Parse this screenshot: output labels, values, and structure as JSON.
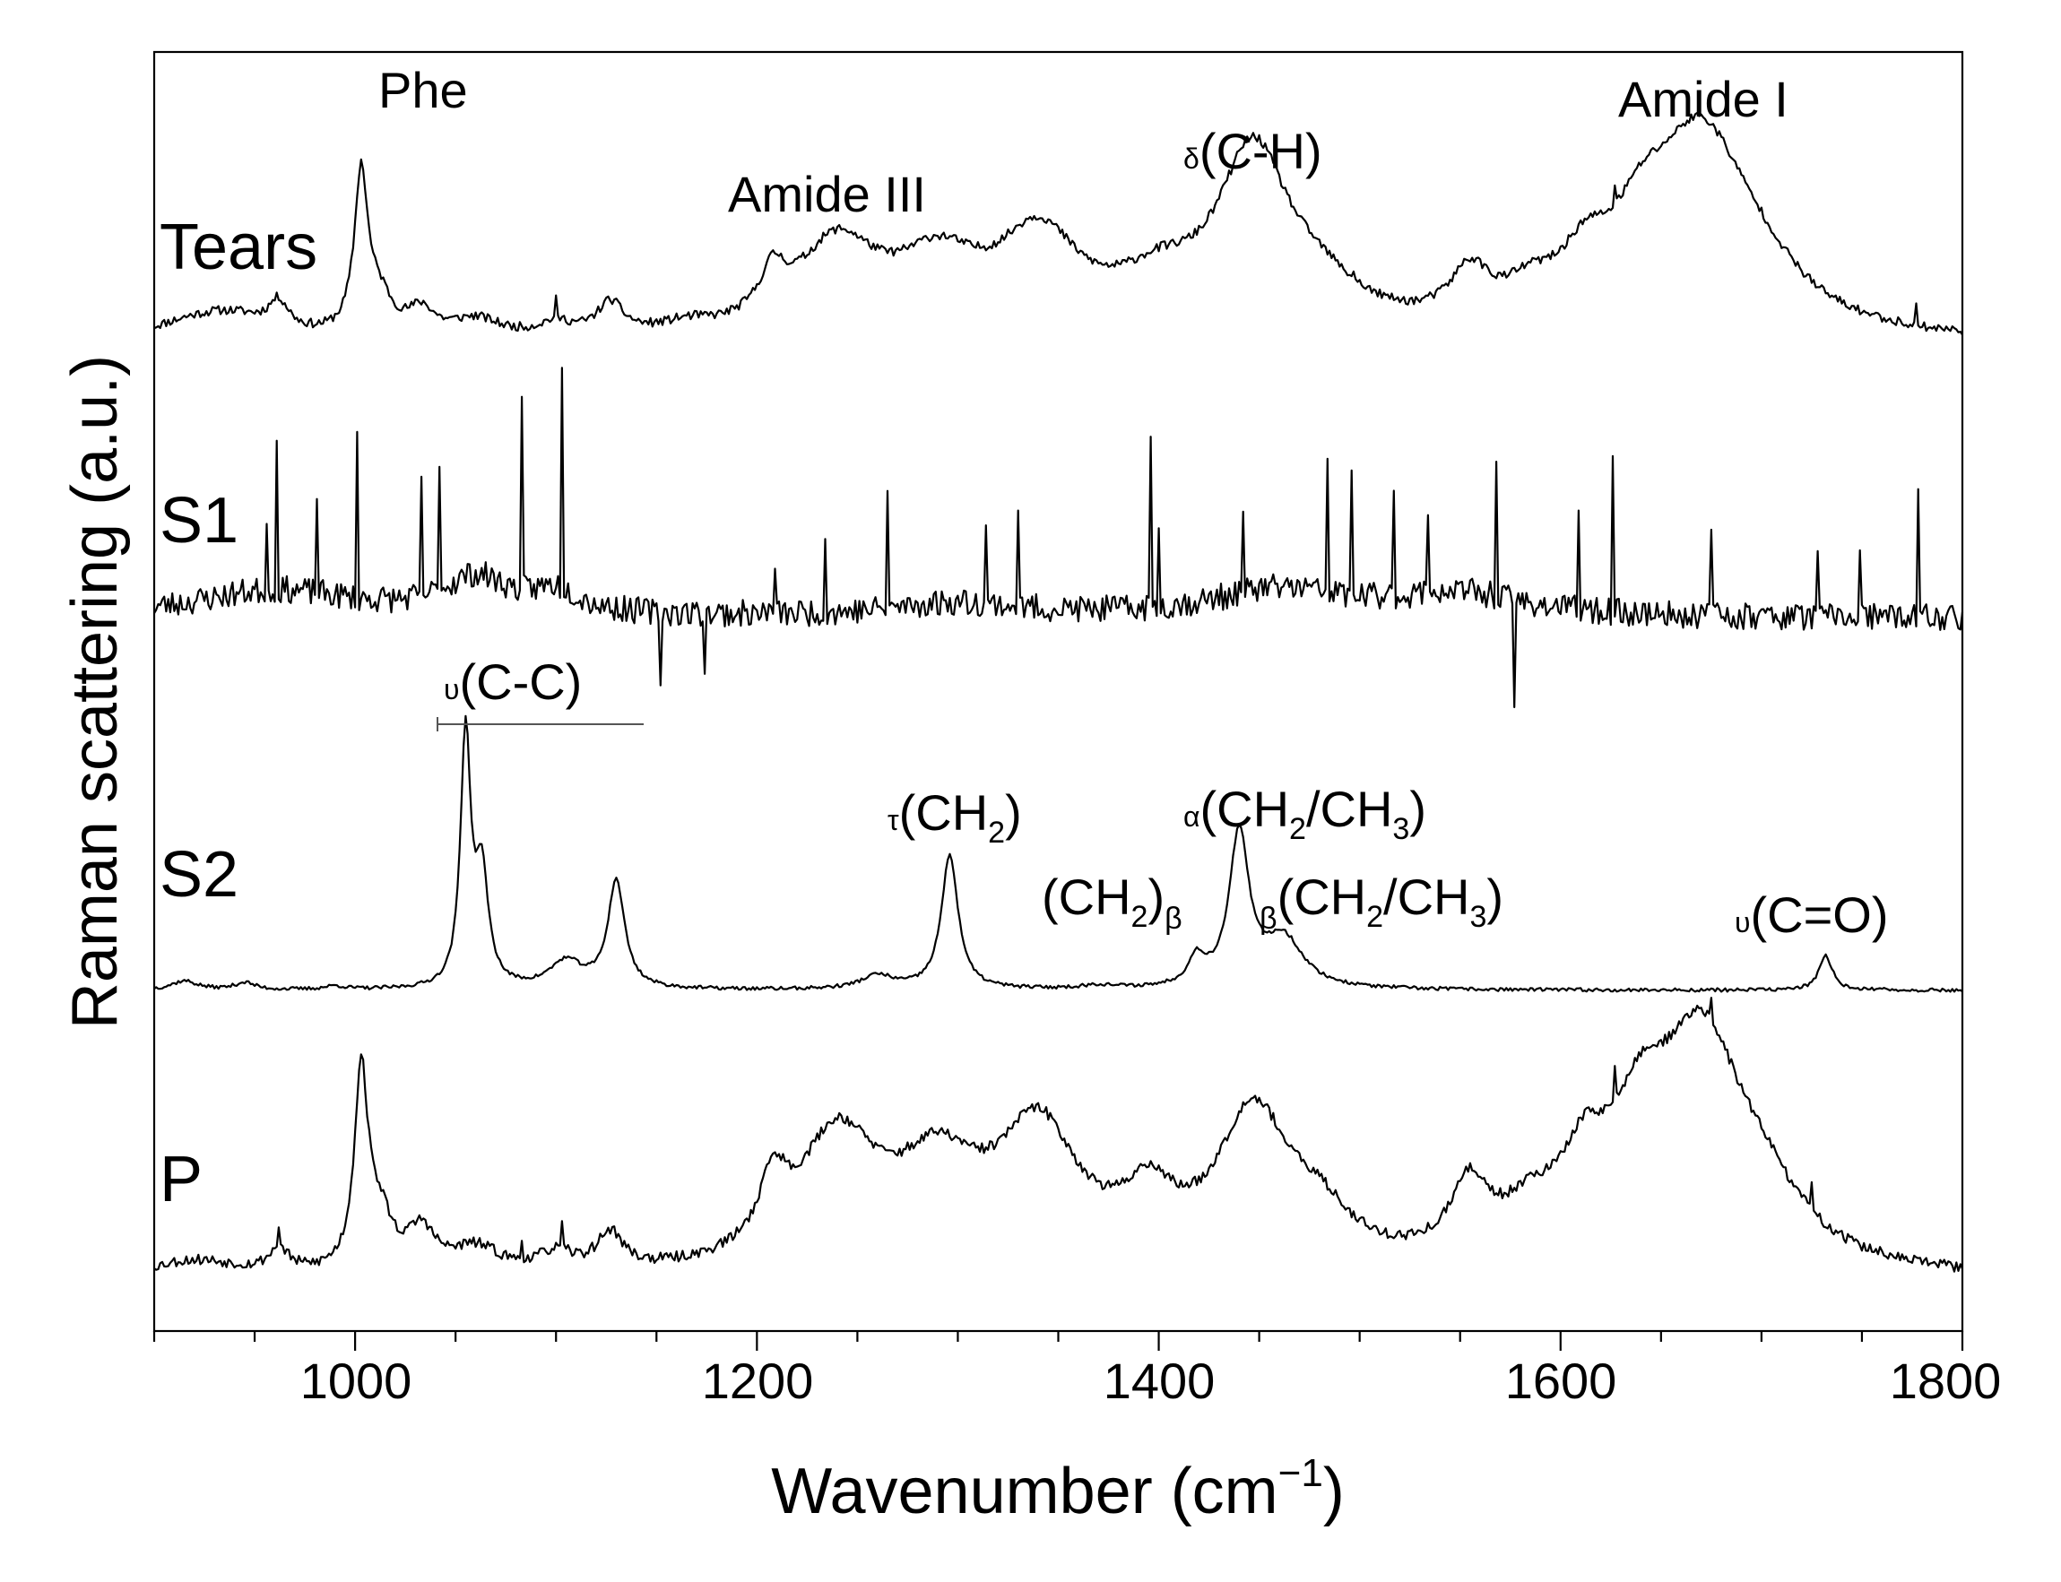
{
  "chart_data": {
    "type": "line",
    "xlabel": "Wavenumber (cm⁻¹)",
    "ylabel": "Raman scattering (a.u.)",
    "xlim": [
      900,
      1800
    ],
    "xticks": [
      1000,
      1200,
      1400,
      1600,
      1800
    ],
    "yticks": [],
    "grid": false,
    "legend": "none",
    "series_labels_on_plot": true,
    "series": [
      {
        "name": "Tears",
        "baseline": 0,
        "peaks": [
          [
            920,
            18,
            30
          ],
          [
            940,
            20,
            25
          ],
          [
            962,
            30,
            6
          ],
          [
            1003,
            175,
            4
          ],
          [
            1012,
            40,
            8
          ],
          [
            1033,
            28,
            8
          ],
          [
            1060,
            20,
            15
          ],
          [
            1100,
            15,
            10
          ],
          [
            1127,
            35,
            8
          ],
          [
            1165,
            10,
            15
          ],
          [
            1208,
            48,
            8
          ],
          [
            1240,
            100,
            25
          ],
          [
            1290,
            72,
            25
          ],
          [
            1340,
            105,
            25
          ],
          [
            1400,
            45,
            25
          ],
          [
            1447,
            195,
            22
          ],
          [
            1480,
            35,
            25
          ],
          [
            1555,
            55,
            12
          ],
          [
            1585,
            30,
            15
          ],
          [
            1612,
            55,
            15
          ],
          [
            1640,
            70,
            18
          ],
          [
            1670,
            215,
            30
          ],
          [
            1700,
            30,
            25
          ]
        ],
        "noise": 5,
        "spikes": [
          [
            1100,
            20
          ],
          [
            1497,
            10
          ],
          [
            1627,
            20
          ],
          [
            1777,
            20
          ]
        ]
      },
      {
        "name": "S1",
        "baseline": 0,
        "peaks": [
          [
            960,
            30,
            50
          ],
          [
            1060,
            40,
            20
          ],
          [
            1100,
            25,
            15
          ],
          [
            1300,
            15,
            40
          ],
          [
            1460,
            30,
            40
          ],
          [
            1550,
            25,
            40
          ]
        ],
        "noise": 15,
        "spikes": [
          [
            956,
            70
          ],
          [
            961,
            160
          ],
          [
            981,
            110
          ],
          [
            1001,
            180
          ],
          [
            1033,
            120
          ],
          [
            1042,
            150
          ],
          [
            1083,
            200
          ],
          [
            1103,
            250
          ],
          [
            1152,
            -80
          ],
          [
            1174,
            -60
          ],
          [
            1209,
            60
          ],
          [
            1234,
            80
          ],
          [
            1265,
            130
          ],
          [
            1314,
            80
          ],
          [
            1330,
            100
          ],
          [
            1396,
            190
          ],
          [
            1400,
            90
          ],
          [
            1442,
            80
          ],
          [
            1484,
            150
          ],
          [
            1496,
            130
          ],
          [
            1517,
            120
          ],
          [
            1534,
            100
          ],
          [
            1568,
            160
          ],
          [
            1577,
            -120
          ],
          [
            1609,
            120
          ],
          [
            1626,
            170
          ],
          [
            1675,
            110
          ],
          [
            1728,
            80
          ],
          [
            1749,
            80
          ],
          [
            1778,
            150
          ]
        ]
      },
      {
        "name": "S2",
        "baseline": 0,
        "peaks": [
          [
            915,
            10,
            8
          ],
          [
            945,
            8,
            6
          ],
          [
            990,
            4,
            6
          ],
          [
            1055,
            280,
            3
          ],
          [
            1063,
            125,
            4
          ],
          [
            1105,
            30,
            10
          ],
          [
            1130,
            120,
            5
          ],
          [
            1260,
            15,
            10
          ],
          [
            1296,
            150,
            5
          ],
          [
            1370,
            4,
            10
          ],
          [
            1419,
            30,
            5
          ],
          [
            1440,
            170,
            6
          ],
          [
            1462,
            55,
            12
          ],
          [
            1732,
            38,
            4
          ]
        ],
        "noise": 2,
        "spikes": []
      },
      {
        "name": "P",
        "baseline": 0,
        "peaks": [
          [
            920,
            20,
            30
          ],
          [
            962,
            25,
            6
          ],
          [
            1003,
            215,
            4
          ],
          [
            1012,
            60,
            8
          ],
          [
            1033,
            45,
            8
          ],
          [
            1060,
            28,
            15
          ],
          [
            1100,
            20,
            10
          ],
          [
            1127,
            40,
            8
          ],
          [
            1208,
            70,
            8
          ],
          [
            1240,
            145,
            25
          ],
          [
            1290,
            100,
            25
          ],
          [
            1340,
            150,
            25
          ],
          [
            1395,
            65,
            15
          ],
          [
            1447,
            170,
            22
          ],
          [
            1480,
            45,
            20
          ],
          [
            1555,
            80,
            12
          ],
          [
            1585,
            45,
            15
          ],
          [
            1612,
            90,
            15
          ],
          [
            1640,
            120,
            18
          ],
          [
            1670,
            235,
            25
          ],
          [
            1700,
            60,
            25
          ]
        ],
        "noise": 6,
        "spikes": [
          [
            962,
            25
          ],
          [
            1083,
            25
          ],
          [
            1103,
            25
          ],
          [
            1627,
            40
          ],
          [
            1675,
            30
          ],
          [
            1725,
            30
          ]
        ]
      }
    ],
    "annotations": [
      {
        "text": "Phe",
        "near": "Tears 1003 peak"
      },
      {
        "text": "Amide III",
        "near": "Tears 1250 band"
      },
      {
        "text": "δ(C-H)",
        "near": "Tears 1447 peak"
      },
      {
        "text": "Amide I",
        "near": "Tears 1670 peak"
      },
      {
        "text": "υ(C-C)",
        "near": "S2 1040–1140 range"
      },
      {
        "text": "τ(CH₂)",
        "near": "S2 1296 peak"
      },
      {
        "text": "α(CH₂/CH₃)",
        "near": "S2 1440 peak"
      },
      {
        "text": "(CH₂)β",
        "near": "S2 1419 peak"
      },
      {
        "text": "β(CH₂/CH₃)",
        "near": "S2 1462 peak"
      },
      {
        "text": "υ(C=O)",
        "near": "S2 1732 peak"
      }
    ]
  },
  "labels": {
    "tears": "Tears",
    "s1": "S1",
    "s2": "S2",
    "p": "P",
    "xlabel_main": "Wavenumber (cm",
    "xlabel_sup": "−1",
    "xlabel_end": ")",
    "ylabel": "Raman scattering (a.u.)",
    "tick_1000": "1000",
    "tick_1200": "1200",
    "tick_1400": "1400",
    "tick_1600": "1600",
    "tick_1800": "1800",
    "phe": "Phe",
    "amide3": "Amide III",
    "delta_sym": "δ",
    "ch": "(C-H)",
    "amide1": "Amide I",
    "upsilon": "υ",
    "cc": "(C-C)",
    "tau": "τ",
    "ch2_open": "(CH",
    "sub2": "2",
    "close": ")",
    "alpha": "α",
    "ch2ch3_mid": "/CH",
    "sub3": "3",
    "beta": "β",
    "co": "(C=O)"
  }
}
